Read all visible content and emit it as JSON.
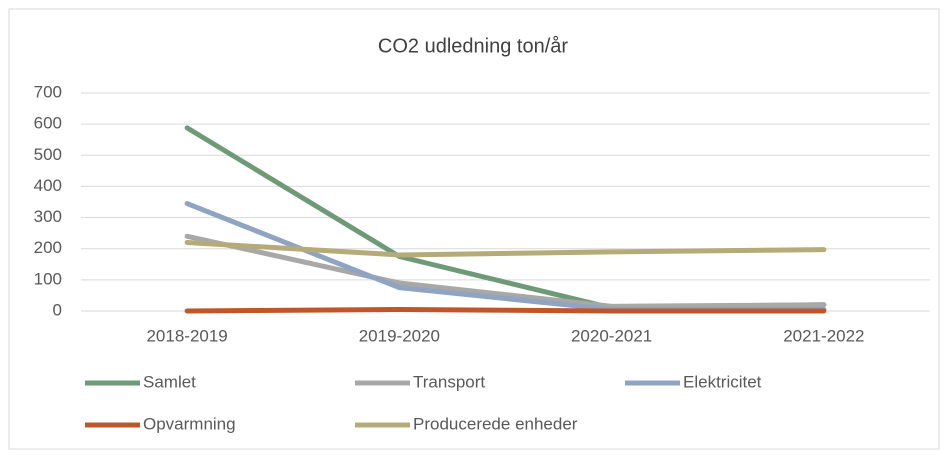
{
  "chart_data": {
    "type": "line",
    "title": "CO2 udledning  ton/år",
    "categories": [
      "2018-2019",
      "2019-2020",
      "2020-2021",
      "2021-2022"
    ],
    "series": [
      {
        "name": "Samlet",
        "color": "#6f9a78",
        "values": [
          588,
          175,
          10,
          20
        ]
      },
      {
        "name": "Transport",
        "color": "#a8a8a8",
        "values": [
          240,
          90,
          15,
          20
        ]
      },
      {
        "name": "Elektricitet",
        "color": "#8fa3c2",
        "values": [
          345,
          75,
          5,
          5
        ]
      },
      {
        "name": "Opvarmning",
        "color": "#c0552a",
        "values": [
          0,
          5,
          0,
          0
        ]
      },
      {
        "name": "Producerede enheder",
        "color": "#b5ab78",
        "values": [
          220,
          180,
          190,
          197
        ]
      }
    ],
    "ylim": [
      0,
      700
    ],
    "yticks": [
      0,
      100,
      200,
      300,
      400,
      500,
      600,
      700
    ],
    "grid": true
  }
}
